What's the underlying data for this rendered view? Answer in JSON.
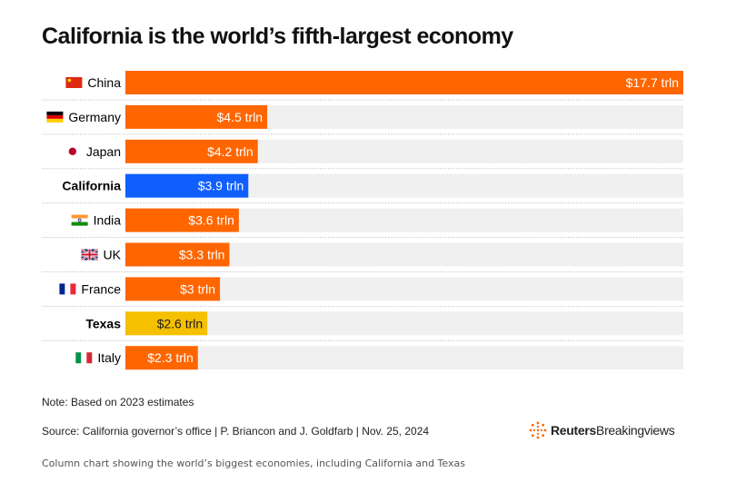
{
  "title": "California is the world’s fifth-largest economy",
  "note": "Note: Based on 2023 estimates",
  "source": "Source: California governor’s office | P. Briancon and J. Goldfarb | Nov. 25, 2024",
  "logo": {
    "word1": "Reuters",
    "word2": "Breakingviews",
    "icon": "reuters-dot-ring-icon"
  },
  "caption": "Column chart showing the world’s biggest economies, including California and Texas",
  "colors": {
    "country": "#ff6600",
    "california": "#0f5fff",
    "texas": "#f5c000",
    "track": "#f0f0f0",
    "divider": "#c8c8c8"
  },
  "chart_data": {
    "type": "bar",
    "orientation": "horizontal",
    "categories": [
      "China",
      "Germany",
      "Japan",
      "California",
      "India",
      "UK",
      "France",
      "Texas",
      "Italy"
    ],
    "values": [
      17.7,
      4.5,
      4.2,
      3.9,
      3.6,
      3.3,
      3,
      2.6,
      2.3
    ],
    "value_labels": [
      "$17.7 trln",
      "$4.5 trln",
      "$4.2 trln",
      "$3.9 trln",
      "$3.6 trln",
      "$3.3 trln",
      "$3 trln",
      "$2.6 trln",
      "$2.3 trln"
    ],
    "flags": [
      "china-flag-icon",
      "germany-flag-icon",
      "japan-flag-icon",
      null,
      "india-flag-icon",
      "uk-flag-icon",
      "france-flag-icon",
      null,
      "italy-flag-icon"
    ],
    "highlight": [
      null,
      null,
      null,
      "california",
      null,
      null,
      null,
      "texas",
      null
    ],
    "xlim": [
      0,
      17.7
    ],
    "grid": false,
    "title": "California is the world’s fifth-largest economy",
    "xlabel": "",
    "ylabel": ""
  }
}
